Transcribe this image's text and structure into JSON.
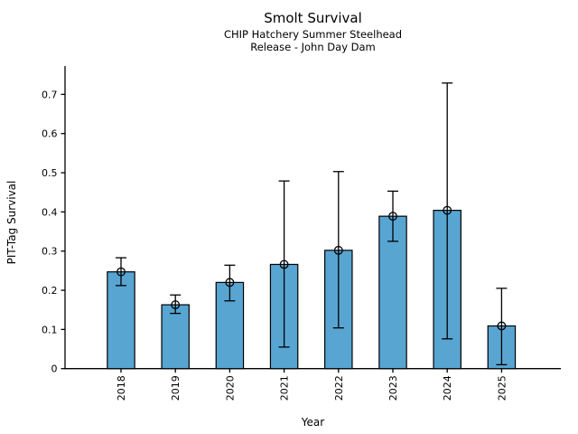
{
  "figure": {
    "background": "#ffffff"
  },
  "chart_data": {
    "type": "bar",
    "title": "Smolt Survival",
    "subtitle_line1": "CHIP Hatchery Summer Steelhead",
    "subtitle_line2": "Release - John Day Dam",
    "xlabel": "Year",
    "ylabel": "PIT-Tag Survival",
    "categories": [
      "2018",
      "2019",
      "2020",
      "2021",
      "2022",
      "2023",
      "2024",
      "2025"
    ],
    "series": [
      {
        "name": "PIT-Tag Survival",
        "values": [
          0.247,
          0.163,
          0.22,
          0.266,
          0.302,
          0.389,
          0.404,
          0.109
        ],
        "error_low": [
          0.212,
          0.141,
          0.173,
          0.055,
          0.104,
          0.325,
          0.076,
          0.01
        ],
        "error_high": [
          0.283,
          0.188,
          0.264,
          0.479,
          0.503,
          0.453,
          0.729,
          0.205
        ]
      }
    ],
    "ylim": [
      0,
      0.7725
    ],
    "yticks": [
      0,
      0.1,
      0.2,
      0.3,
      0.4,
      0.5,
      0.6,
      0.7
    ],
    "ytick_labels": [
      "0",
      "0.1",
      "0.2",
      "0.3",
      "0.4",
      "0.5",
      "0.6",
      "0.7"
    ],
    "grid": false,
    "legend_position": null,
    "bar_color": "#58a5d2",
    "bar_edge_color": "#000000",
    "errorbar_color": "#000000",
    "marker": "open-circle"
  }
}
